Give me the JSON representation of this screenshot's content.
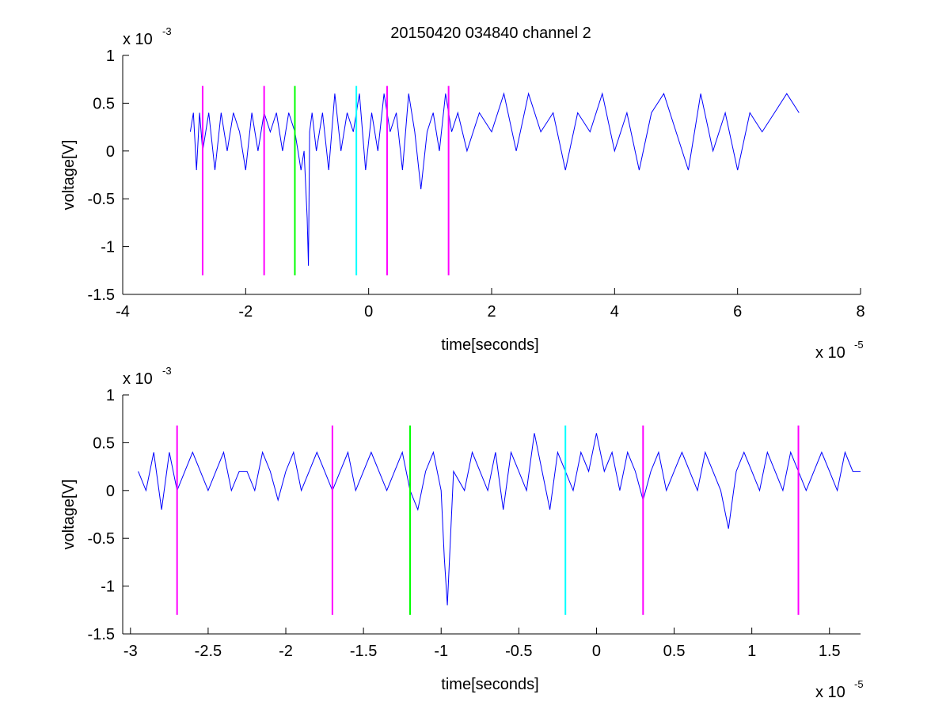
{
  "figure_title": "20150420 034840 channel 2",
  "chart_data": [
    {
      "type": "line",
      "title": "20150420 034840 channel 2",
      "xlabel": "time[seconds]",
      "ylabel": "voltage[V]",
      "x_multiplier": "x 10",
      "x_exponent": "-5",
      "y_multiplier": "x 10",
      "y_exponent": "-3",
      "xlim": [
        -4e-05,
        8e-05
      ],
      "ylim": [
        -0.0015,
        0.001
      ],
      "xticks": [
        -4e-05,
        -2e-05,
        0,
        2e-05,
        4e-05,
        6e-05,
        8e-05
      ],
      "xtick_labels": [
        "-4",
        "-2",
        "0",
        "2",
        "4",
        "6",
        "8"
      ],
      "yticks": [
        -0.0015,
        -0.001,
        -0.0005,
        0,
        0.0005,
        0.001
      ],
      "ytick_labels": [
        "-1.5",
        "-1",
        "-0.5",
        "0",
        "0.5",
        "1"
      ],
      "grid": false,
      "series_color": "#0000ff",
      "markers": [
        {
          "x": -2.7e-05,
          "y": [
            -0.0013,
            0.00068
          ],
          "color": "#ff00ff"
        },
        {
          "x": -1.7e-05,
          "y": [
            -0.0013,
            0.00068
          ],
          "color": "#ff00ff"
        },
        {
          "x": -1.2e-05,
          "y": [
            -0.0013,
            0.00068
          ],
          "color": "#00ff00"
        },
        {
          "x": -2e-06,
          "y": [
            -0.0013,
            0.00068
          ],
          "color": "#00ffff"
        },
        {
          "x": 3e-06,
          "y": [
            -0.0013,
            0.00068
          ],
          "color": "#ff00ff"
        },
        {
          "x": 1.3e-05,
          "y": [
            -0.0013,
            0.00068
          ],
          "color": "#ff00ff"
        }
      ],
      "series": [
        {
          "x": [
            -2.9e-05,
            -2.85e-05,
            -2.8e-05,
            -2.75e-05,
            -2.7e-05,
            -2.6e-05,
            -2.5e-05,
            -2.4e-05,
            -2.3e-05,
            -2.2e-05,
            -2.1e-05,
            -2e-05,
            -1.9e-05,
            -1.8e-05,
            -1.7e-05,
            -1.6e-05,
            -1.5e-05,
            -1.4e-05,
            -1.3e-05,
            -1.2e-05,
            -1.15e-05,
            -1.1e-05,
            -1.05e-05,
            -1e-05,
            -9.8e-06,
            -9.6e-06,
            -9.2e-06,
            -8.5e-06,
            -7.5e-06,
            -6.5e-06,
            -5.5e-06,
            -4.5e-06,
            -3.5e-06,
            -2.5e-06,
            -1.5e-06,
            -5e-07,
            5e-07,
            1.5e-06,
            2.5e-06,
            3.5e-06,
            4.5e-06,
            5.5e-06,
            6.5e-06,
            7.5e-06,
            8.5e-06,
            9.5e-06,
            1.05e-05,
            1.15e-05,
            1.25e-05,
            1.35e-05,
            1.45e-05,
            1.6e-05,
            1.8e-05,
            2e-05,
            2.2e-05,
            2.4e-05,
            2.6e-05,
            2.8e-05,
            3e-05,
            3.2e-05,
            3.4e-05,
            3.6e-05,
            3.8e-05,
            4e-05,
            4.2e-05,
            4.4e-05,
            4.6e-05,
            4.8e-05,
            5e-05,
            5.2e-05,
            5.4e-05,
            5.6e-05,
            5.8e-05,
            6e-05,
            6.2e-05,
            6.4e-05,
            6.6e-05,
            6.8e-05,
            7e-05
          ],
          "y": [
            0.0002,
            0.0004,
            -0.0002,
            0.0004,
            0.0,
            0.0004,
            -0.0002,
            0.0004,
            0.0,
            0.0004,
            0.0002,
            -0.0002,
            0.0004,
            0.0,
            0.0004,
            0.0002,
            0.0004,
            0.0,
            0.0004,
            0.0002,
            0.0,
            -0.0002,
            0.0,
            -0.0007,
            -0.0012,
            0.0002,
            0.0004,
            0.0,
            0.0004,
            -0.0002,
            0.0006,
            0.0,
            0.0004,
            0.0002,
            0.0006,
            -0.0002,
            0.0004,
            0.0,
            0.0006,
            0.0002,
            0.0004,
            -0.0002,
            0.0006,
            0.0002,
            -0.0004,
            0.0002,
            0.0004,
            0.0,
            0.0006,
            0.0002,
            0.0004,
            0.0,
            0.0004,
            0.0002,
            0.0006,
            0.0,
            0.0006,
            0.0002,
            0.0004,
            -0.0002,
            0.0004,
            0.0002,
            0.0006,
            0.0,
            0.0004,
            -0.0002,
            0.0004,
            0.0006,
            0.0002,
            -0.0002,
            0.0006,
            0.0,
            0.0004,
            -0.0002,
            0.0004,
            0.0002,
            0.0004,
            0.0006,
            0.0004
          ]
        }
      ]
    },
    {
      "type": "line",
      "xlabel": "time[seconds]",
      "ylabel": "voltage[V]",
      "x_multiplier": "x 10",
      "x_exponent": "-5",
      "y_multiplier": "x 10",
      "y_exponent": "-3",
      "xlim": [
        -3.05e-05,
        1.7e-05
      ],
      "ylim": [
        -0.0015,
        0.001
      ],
      "xticks": [
        -3e-05,
        -2.5e-05,
        -2e-05,
        -1.5e-05,
        -1e-05,
        -5e-06,
        0,
        5e-06,
        1e-05,
        1.5e-05
      ],
      "xtick_labels": [
        "-3",
        "-2.5",
        "-2",
        "-1.5",
        "-1",
        "-0.5",
        "0",
        "0.5",
        "1",
        "1.5"
      ],
      "yticks": [
        -0.0015,
        -0.001,
        -0.0005,
        0,
        0.0005,
        0.001
      ],
      "ytick_labels": [
        "-1.5",
        "-1",
        "-0.5",
        "0",
        "0.5",
        "1"
      ],
      "grid": false,
      "series_color": "#0000ff",
      "markers": [
        {
          "x": -2.7e-05,
          "y": [
            -0.0013,
            0.00068
          ],
          "color": "#ff00ff"
        },
        {
          "x": -1.7e-05,
          "y": [
            -0.0013,
            0.00068
          ],
          "color": "#ff00ff"
        },
        {
          "x": -1.2e-05,
          "y": [
            -0.0013,
            0.00068
          ],
          "color": "#00ff00"
        },
        {
          "x": -2e-06,
          "y": [
            -0.0013,
            0.00068
          ],
          "color": "#00ffff"
        },
        {
          "x": 3e-06,
          "y": [
            -0.0013,
            0.00068
          ],
          "color": "#ff00ff"
        },
        {
          "x": 1.3e-05,
          "y": [
            -0.0013,
            0.00068
          ],
          "color": "#ff00ff"
        }
      ],
      "series": [
        {
          "x": [
            -2.95e-05,
            -2.9e-05,
            -2.85e-05,
            -2.8e-05,
            -2.75e-05,
            -2.7e-05,
            -2.65e-05,
            -2.6e-05,
            -2.55e-05,
            -2.5e-05,
            -2.45e-05,
            -2.4e-05,
            -2.35e-05,
            -2.3e-05,
            -2.25e-05,
            -2.2e-05,
            -2.15e-05,
            -2.1e-05,
            -2.05e-05,
            -2e-05,
            -1.95e-05,
            -1.9e-05,
            -1.85e-05,
            -1.8e-05,
            -1.75e-05,
            -1.7e-05,
            -1.65e-05,
            -1.6e-05,
            -1.55e-05,
            -1.5e-05,
            -1.45e-05,
            -1.4e-05,
            -1.35e-05,
            -1.3e-05,
            -1.25e-05,
            -1.2e-05,
            -1.15e-05,
            -1.1e-05,
            -1.05e-05,
            -1e-05,
            -9.8e-06,
            -9.6e-06,
            -9.2e-06,
            -8.5e-06,
            -8e-06,
            -7.5e-06,
            -7e-06,
            -6.5e-06,
            -6e-06,
            -5.5e-06,
            -5e-06,
            -4.5e-06,
            -4e-06,
            -3.5e-06,
            -3e-06,
            -2.5e-06,
            -2e-06,
            -1.5e-06,
            -1e-06,
            -5e-07,
            0,
            5e-07,
            1e-06,
            1.5e-06,
            2e-06,
            2.5e-06,
            3e-06,
            3.5e-06,
            4e-06,
            4.5e-06,
            5e-06,
            5.5e-06,
            6e-06,
            6.5e-06,
            7e-06,
            7.5e-06,
            8e-06,
            8.5e-06,
            9e-06,
            9.5e-06,
            1e-05,
            1.05e-05,
            1.1e-05,
            1.15e-05,
            1.2e-05,
            1.25e-05,
            1.3e-05,
            1.35e-05,
            1.4e-05,
            1.45e-05,
            1.5e-05,
            1.55e-05,
            1.6e-05,
            1.65e-05,
            1.7e-05
          ],
          "y": [
            0.0002,
            0.0,
            0.0004,
            -0.0002,
            0.0004,
            0.0,
            0.0002,
            0.0004,
            0.0002,
            0.0,
            0.0002,
            0.0004,
            0.0,
            0.0002,
            0.0002,
            0.0,
            0.0004,
            0.0002,
            -0.0001,
            0.0002,
            0.0004,
            0.0,
            0.0002,
            0.0004,
            0.0002,
            0.0,
            0.0002,
            0.0004,
            0.0,
            0.0002,
            0.0004,
            0.0002,
            0.0,
            0.0002,
            0.0004,
            0.0,
            -0.0002,
            0.0002,
            0.0004,
            0.0,
            -0.0007,
            -0.0012,
            0.0002,
            0.0,
            0.0004,
            0.0002,
            0.0,
            0.0004,
            -0.0002,
            0.0004,
            0.0002,
            0.0,
            0.0006,
            0.0002,
            -0.0002,
            0.0004,
            0.0002,
            0.0,
            0.0004,
            0.0002,
            0.0006,
            0.0002,
            0.0004,
            0.0,
            0.0004,
            0.0002,
            -0.0001,
            0.0002,
            0.0004,
            0.0,
            0.0002,
            0.0004,
            0.0002,
            0.0,
            0.0004,
            0.0002,
            0.0,
            -0.0004,
            0.0002,
            0.0004,
            0.0002,
            0.0,
            0.0004,
            0.0002,
            0.0,
            0.0004,
            0.0002,
            0.0,
            0.0002,
            0.0004,
            0.0002,
            0.0,
            0.0004,
            0.0002,
            0.0002
          ]
        }
      ]
    }
  ]
}
